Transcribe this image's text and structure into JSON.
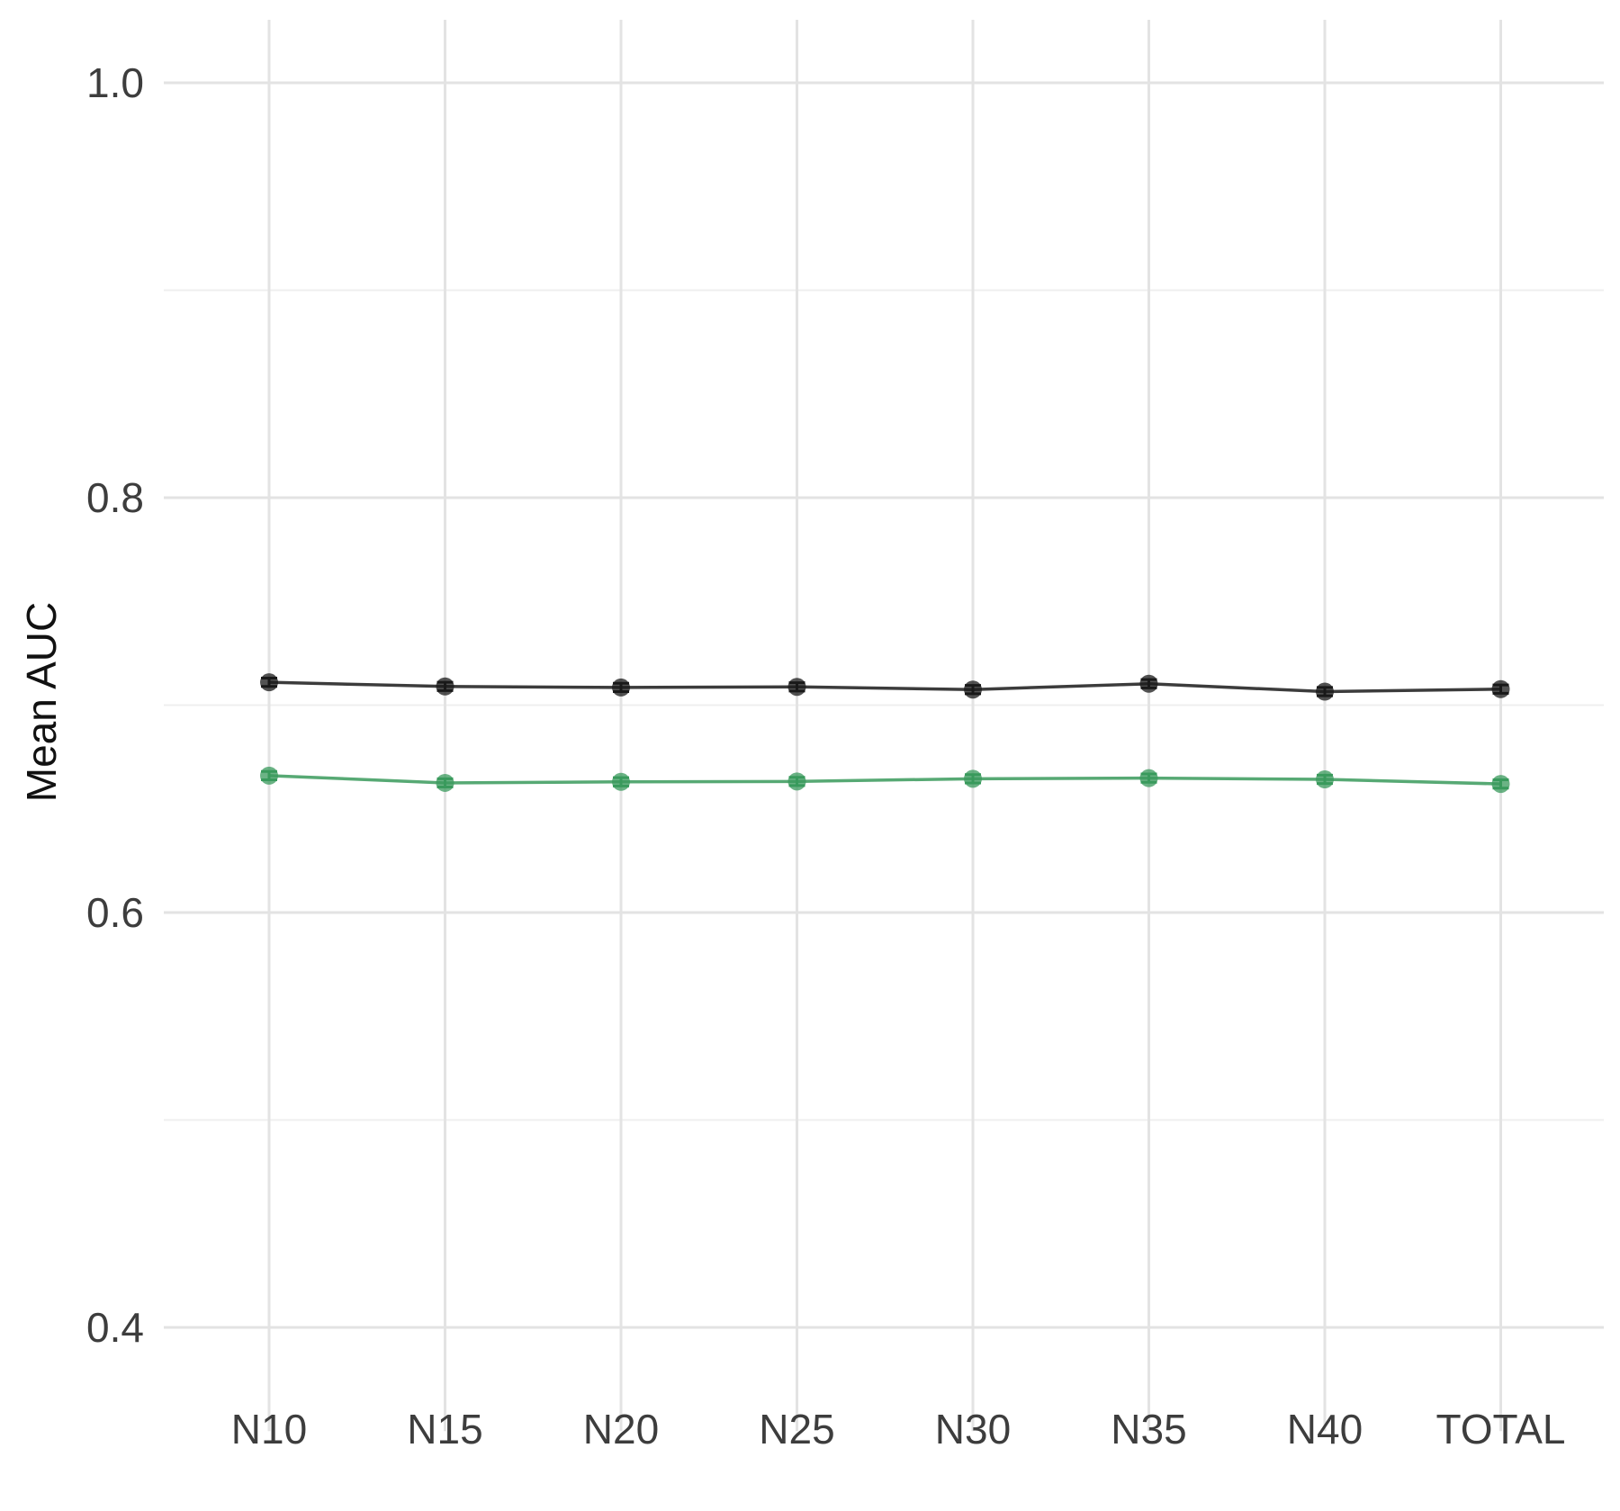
{
  "chart_data": {
    "type": "line",
    "xlabel": "",
    "ylabel": "Mean AUC",
    "ylim": [
      0.35,
      1.03
    ],
    "y_ticks": [
      0.4,
      0.6,
      0.8,
      1.0
    ],
    "y_tick_labels": [
      "0.4",
      "0.6",
      "0.8",
      "1.0"
    ],
    "y_minor_ticks": [
      0.5,
      0.7,
      0.9
    ],
    "grid": true,
    "legend": "none",
    "categories": [
      "N10",
      "N15",
      "N20",
      "N25",
      "N30",
      "N35",
      "N40",
      "TOTAL"
    ],
    "series": [
      {
        "color": "#1a1a1a",
        "values": [
          0.711,
          0.709,
          0.7085,
          0.7088,
          0.7075,
          0.7103,
          0.7065,
          0.7077
        ],
        "error": 0.002
      },
      {
        "color": "#3a9a5c",
        "values": [
          0.666,
          0.6625,
          0.663,
          0.6632,
          0.6645,
          0.6648,
          0.6642,
          0.662
        ],
        "error": 0.002
      }
    ]
  }
}
